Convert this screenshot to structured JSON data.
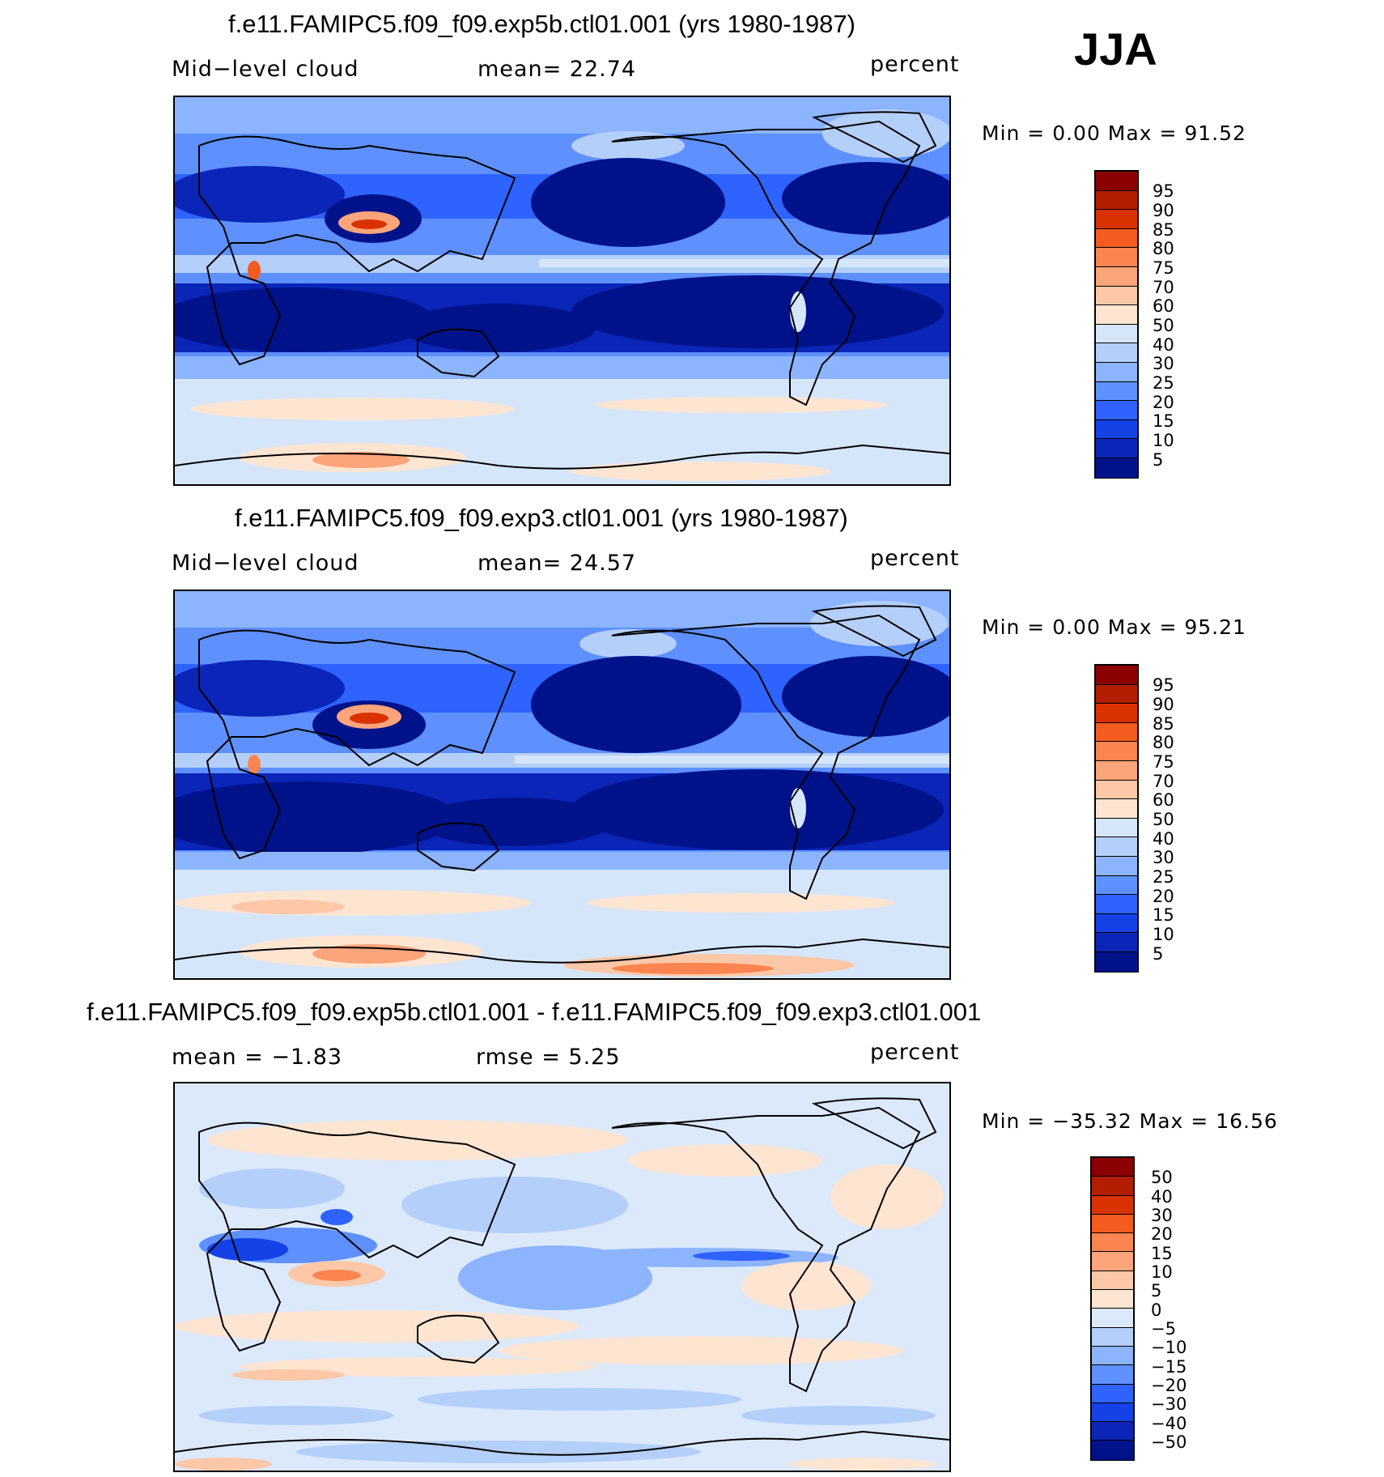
{
  "season": "JJA",
  "panels": [
    {
      "title": "f.e11.FAMIPC5.f09_f09.exp5b.ctl01.001 (yrs 1980-1987)",
      "left_label": "Mid−level cloud",
      "center_label": "mean=   22.74",
      "right_label": "percent",
      "minmax": "Min =     0.00 Max =   91.52",
      "levels": [
        "95",
        "90",
        "85",
        "80",
        "75",
        "70",
        "60",
        "50",
        "40",
        "30",
        "25",
        "20",
        "15",
        "10",
        "5"
      ],
      "colors": [
        "#8b0000",
        "#b31d00",
        "#d93200",
        "#f35b1f",
        "#fb8550",
        "#fca47a",
        "#fdc8a8",
        "#fde5d2",
        "#d6e6fa",
        "#b4cffa",
        "#8cb4ff",
        "#5e90ff",
        "#2e63ff",
        "#1442e6",
        "#0a25b8",
        "#00128a"
      ],
      "data_range": [
        0.0,
        91.52
      ]
    },
    {
      "title": "f.e11.FAMIPC5.f09_f09.exp3.ctl01.001 (yrs 1980-1987)",
      "left_label": "Mid−level cloud",
      "center_label": "mean=   24.57",
      "right_label": "percent",
      "minmax": "Min =     0.00 Max =   95.21",
      "levels": [
        "95",
        "90",
        "85",
        "80",
        "75",
        "70",
        "60",
        "50",
        "40",
        "30",
        "25",
        "20",
        "15",
        "10",
        "5"
      ],
      "colors": [
        "#8b0000",
        "#b31d00",
        "#d93200",
        "#f35b1f",
        "#fb8550",
        "#fca47a",
        "#fdc8a8",
        "#fde5d2",
        "#d6e6fa",
        "#b4cffa",
        "#8cb4ff",
        "#5e90ff",
        "#2e63ff",
        "#1442e6",
        "#0a25b8",
        "#00128a"
      ],
      "data_range": [
        0.0,
        95.21
      ]
    },
    {
      "title": "f.e11.FAMIPC5.f09_f09.exp5b.ctl01.001 - f.e11.FAMIPC5.f09_f09.exp3.ctl01.001",
      "left_label": "mean =   −1.83",
      "center_label": "rmse =     5.25",
      "right_label": "percent",
      "minmax": "Min = −35.32 Max =   16.56",
      "levels": [
        "50",
        "40",
        "30",
        "20",
        "15",
        "10",
        "5",
        "0",
        "−5",
        "−10",
        "−15",
        "−20",
        "−30",
        "−40",
        "−50"
      ],
      "colors": [
        "#8b0000",
        "#b31d00",
        "#d93200",
        "#f35b1f",
        "#fb8550",
        "#fca47a",
        "#fdc8a8",
        "#fde5d2",
        "#dbe9fb",
        "#b4cffa",
        "#8cb4ff",
        "#5e90ff",
        "#2e63ff",
        "#1442e6",
        "#0a25b8",
        "#00128a"
      ],
      "data_range": [
        -35.32,
        16.56
      ]
    }
  ]
}
